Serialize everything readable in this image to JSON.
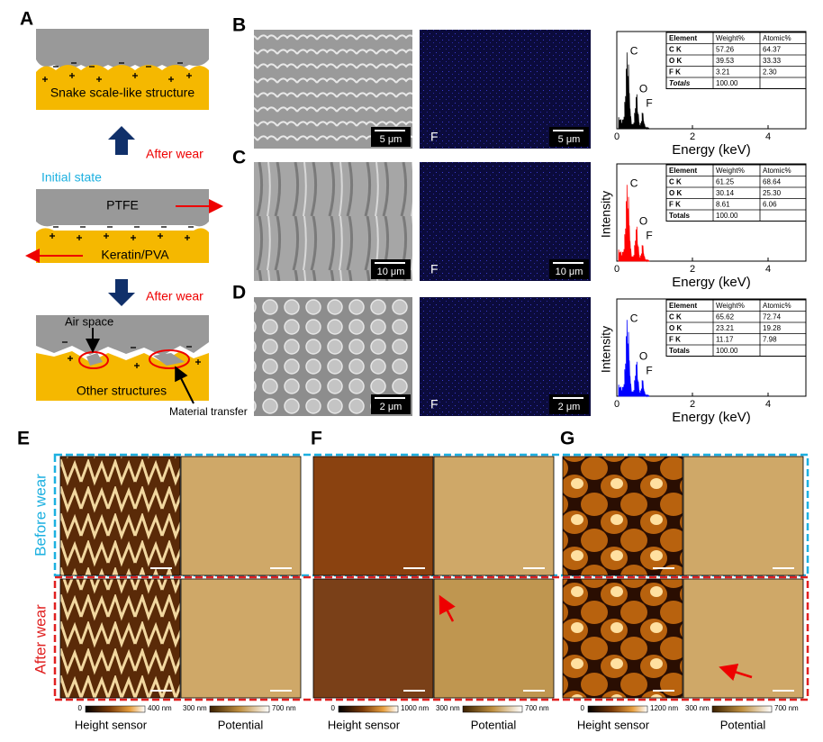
{
  "panel_a": {
    "label": "A",
    "top_text": "Snake scale-like structure",
    "arrow_up_text": "After wear",
    "initial_state": "Initial state",
    "ptfe": "PTFE",
    "keratin": "Keratin/PVA",
    "arrow_down_text": "After wear",
    "air_space": "Air space",
    "other_structures": "Other structures",
    "material_transfer": "Material transfer"
  },
  "eds_panels": [
    {
      "label": "B",
      "sem_scale": "5 μm",
      "map_element": "F",
      "map_scale": "5 μm",
      "color": "#000000",
      "peaks": [
        "C",
        "O",
        "F"
      ],
      "x_label": "Energy (keV)",
      "xlim": [
        0,
        5
      ],
      "xticks": [
        0,
        2,
        4
      ],
      "table": {
        "header": [
          "Element",
          "Weight%",
          "Atomic%"
        ],
        "rows": [
          [
            "C K",
            "57.26",
            "64.37"
          ],
          [
            "O K",
            "39.53",
            "33.33"
          ],
          [
            "F K",
            "3.21",
            "2.30"
          ],
          [
            "Totals",
            "100.00"
          ]
        ]
      }
    },
    {
      "label": "C",
      "sem_scale": "10 μm",
      "map_element": "F",
      "map_scale": "10 μm",
      "color": "#ff0000",
      "peaks": [
        "C",
        "O",
        "F"
      ],
      "x_label": "Energy (keV)",
      "y_label": "Intensity",
      "xlim": [
        0,
        5
      ],
      "xticks": [
        0,
        2,
        4
      ],
      "table": {
        "header": [
          "Element",
          "Weight%",
          "Atomic%"
        ],
        "rows": [
          [
            "C K",
            "61.25",
            "68.64"
          ],
          [
            "O K",
            "30.14",
            "25.30"
          ],
          [
            "F K",
            "8.61",
            "6.06"
          ],
          [
            "Totals",
            "100.00"
          ]
        ]
      }
    },
    {
      "label": "D",
      "sem_scale": "2 μm",
      "map_element": "F",
      "map_scale": "2 μm",
      "color": "#0000ff",
      "peaks": [
        "C",
        "O",
        "F"
      ],
      "x_label": "Energy (keV)",
      "y_label": "Intensity",
      "xlim": [
        0,
        5
      ],
      "xticks": [
        0,
        2,
        4
      ],
      "table": {
        "header": [
          "Element",
          "Weight%",
          "Atomic%"
        ],
        "rows": [
          [
            "C K",
            "65.62",
            "72.74"
          ],
          [
            "O K",
            "23.21",
            "19.28"
          ],
          [
            "F K",
            "11.17",
            "7.98"
          ],
          [
            "Totals",
            "100.00"
          ]
        ]
      }
    }
  ],
  "row_labels": {
    "before": "Before wear",
    "after": "After wear"
  },
  "afm_panels": [
    {
      "label": "E",
      "height_scale": [
        "0",
        "400 nm"
      ],
      "potential_scale": [
        "300 nm",
        "700 nm"
      ],
      "height_title": "Height sensor",
      "potential_title": "Potential"
    },
    {
      "label": "F",
      "height_scale": [
        "0",
        "1000 nm"
      ],
      "potential_scale": [
        "300 nm",
        "700 nm"
      ],
      "height_title": "Height sensor",
      "potential_title": "Potential"
    },
    {
      "label": "G",
      "height_scale": [
        "0",
        "1200 nm"
      ],
      "potential_scale": [
        "300 nm",
        "700 nm"
      ],
      "height_title": "Height sensor",
      "potential_title": "Potential"
    }
  ]
}
